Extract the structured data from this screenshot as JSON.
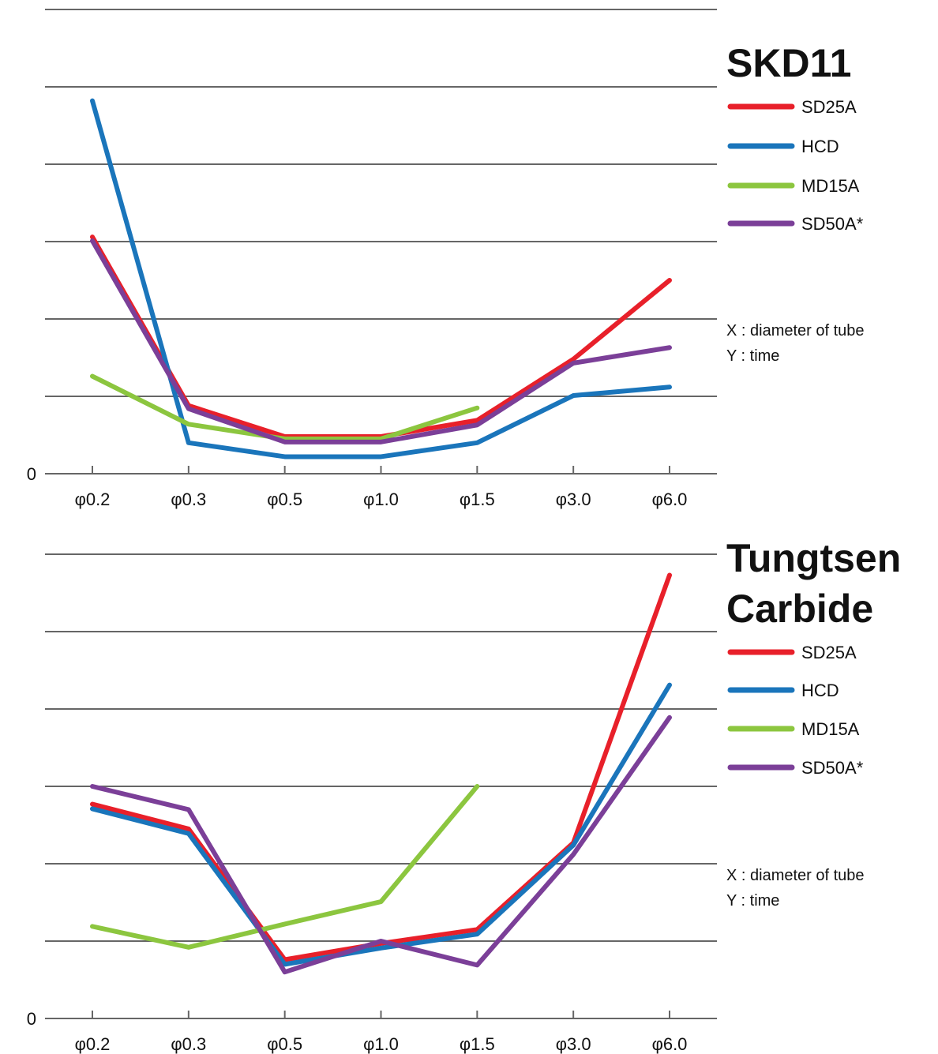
{
  "chart_data": [
    {
      "type": "line",
      "title": "SKD11",
      "categories": [
        "φ0.2",
        "φ0.3",
        "φ0.5",
        "φ1.0",
        "φ1.5",
        "φ3.0",
        "φ6.0"
      ],
      "series": [
        {
          "name": "SD25A",
          "color": "#e8202a",
          "values": [
            3.06,
            0.88,
            0.48,
            0.48,
            0.69,
            1.48,
            2.5
          ]
        },
        {
          "name": "HCD",
          "color": "#1a75bb",
          "values": [
            4.82,
            0.4,
            0.22,
            0.22,
            0.4,
            1.01,
            1.12
          ]
        },
        {
          "name": "MD15A",
          "color": "#8cc63f",
          "values": [
            1.26,
            0.64,
            0.45,
            0.45,
            0.85,
            null,
            null
          ]
        },
        {
          "name": "SD50A*",
          "color": "#7b3f98",
          "values": [
            3.01,
            0.84,
            0.41,
            0.41,
            0.63,
            1.43,
            1.63
          ]
        }
      ],
      "ylim": [
        0,
        6
      ],
      "yticks": [
        0,
        {
          "value": 1,
          "label": null
        },
        {
          "value": 2,
          "label": null
        },
        {
          "value": 3,
          "label": null
        },
        {
          "value": 4,
          "label": null
        },
        {
          "value": 5,
          "label": null
        },
        {
          "value": 6,
          "label": null
        }
      ],
      "grid": true,
      "annotations": [
        "X : diameter of tube",
        "Y : time"
      ]
    },
    {
      "type": "line",
      "title": "Tungtsen Carbide",
      "categories": [
        "φ0.2",
        "φ0.3",
        "φ0.5",
        "φ1.0",
        "φ1.5",
        "φ3.0",
        "φ6.0"
      ],
      "series": [
        {
          "name": "SD25A",
          "color": "#e8202a",
          "values": [
            2.77,
            2.45,
            0.76,
            0.97,
            1.15,
            2.27,
            5.73
          ]
        },
        {
          "name": "HCD",
          "color": "#1a75bb",
          "values": [
            2.71,
            2.39,
            0.7,
            0.91,
            1.09,
            2.24,
            4.31
          ]
        },
        {
          "name": "MD15A",
          "color": "#8cc63f",
          "values": [
            1.19,
            0.92,
            1.22,
            1.51,
            3.0,
            null,
            null
          ]
        },
        {
          "name": "SD50A*",
          "color": "#7b3f98",
          "values": [
            3.0,
            2.7,
            0.6,
            1.0,
            0.69,
            2.12,
            3.89
          ]
        }
      ],
      "ylim": [
        0,
        6
      ],
      "yticks": [
        0,
        {
          "value": 1,
          "label": null
        },
        {
          "value": 2,
          "label": null
        },
        {
          "value": 3,
          "label": null
        },
        {
          "value": 4,
          "label": null
        },
        {
          "value": 5,
          "label": null
        },
        {
          "value": 6,
          "label": null
        }
      ],
      "grid": true,
      "annotations": [
        "X : diameter of tube",
        "Y : time"
      ]
    }
  ]
}
